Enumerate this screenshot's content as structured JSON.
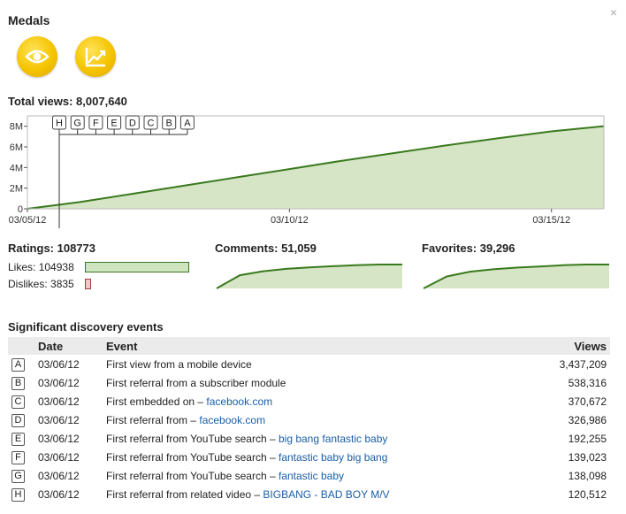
{
  "medals": {
    "title": "Medals",
    "items": [
      {
        "icon": "eye-icon",
        "color": "#f5c400"
      },
      {
        "icon": "trending-chart-icon",
        "color": "#f5c400"
      }
    ]
  },
  "close_label": "×",
  "total_views": {
    "label": "Total views: 8,007,640",
    "chart_data": {
      "type": "area",
      "x": [
        "03/05/12",
        "03/06/12",
        "03/07/12",
        "03/08/12",
        "03/09/12",
        "03/10/12",
        "03/11/12",
        "03/12/12",
        "03/13/12",
        "03/14/12",
        "03/15/12",
        "03/16/12"
      ],
      "values": [
        0,
        650000,
        1450000,
        2250000,
        3050000,
        3850000,
        4650000,
        5400000,
        6150000,
        6850000,
        7500000,
        8007640
      ],
      "y_ticks": [
        "0",
        "2M",
        "4M",
        "6M",
        "8M"
      ],
      "x_tick_labels": [
        "03/05/12",
        "03/10/12",
        "03/15/12"
      ],
      "ylim": [
        0,
        9000000
      ],
      "grid": false,
      "fill_color": "#d6e5c6",
      "line_color": "#3a7a1e",
      "event_markers": [
        "H",
        "G",
        "F",
        "E",
        "D",
        "C",
        "B",
        "A"
      ]
    }
  },
  "ratings": {
    "label": "Ratings: 108773",
    "likes_label": "Likes:",
    "likes_value": "104938",
    "dislikes_label": "Dislikes:",
    "dislikes_value": "3835",
    "likes_fraction": 0.965,
    "likes_color": "#cfe5c0",
    "dislikes_color": "#f2c6c6"
  },
  "comments": {
    "label": "Comments: 51,059",
    "chart_data": {
      "type": "area",
      "values": [
        0,
        0.55,
        0.72,
        0.82,
        0.88,
        0.93,
        0.97,
        1.0,
        1.0
      ]
    }
  },
  "favorites": {
    "label": "Favorites: 39,296",
    "chart_data": {
      "type": "area",
      "values": [
        0,
        0.5,
        0.7,
        0.8,
        0.87,
        0.92,
        0.97,
        1.0,
        1.0
      ]
    }
  },
  "events": {
    "title": "Significant discovery events",
    "headers": {
      "date": "Date",
      "event": "Event",
      "views": "Views"
    },
    "rows": [
      {
        "letter": "A",
        "date": "03/06/12",
        "event": "First view from a mobile device",
        "link": "",
        "views": "3,437,209"
      },
      {
        "letter": "B",
        "date": "03/06/12",
        "event": "First referral from a subscriber module",
        "link": "",
        "views": "538,316"
      },
      {
        "letter": "C",
        "date": "03/06/12",
        "event": "First embedded on – ",
        "link": "facebook.com",
        "views": "370,672"
      },
      {
        "letter": "D",
        "date": "03/06/12",
        "event": "First referral from – ",
        "link": "facebook.com",
        "views": "326,986"
      },
      {
        "letter": "E",
        "date": "03/06/12",
        "event": "First referral from YouTube search – ",
        "link": "big bang fantastic baby",
        "views": "192,255"
      },
      {
        "letter": "F",
        "date": "03/06/12",
        "event": "First referral from YouTube search – ",
        "link": "fantastic baby big bang",
        "views": "139,023"
      },
      {
        "letter": "G",
        "date": "03/06/12",
        "event": "First referral from YouTube search – ",
        "link": "fantastic baby",
        "views": "138,098"
      },
      {
        "letter": "H",
        "date": "03/06/12",
        "event": "First referral from related video – ",
        "link": "BIGBANG - BAD BOY M/V",
        "views": "120,512"
      }
    ]
  }
}
